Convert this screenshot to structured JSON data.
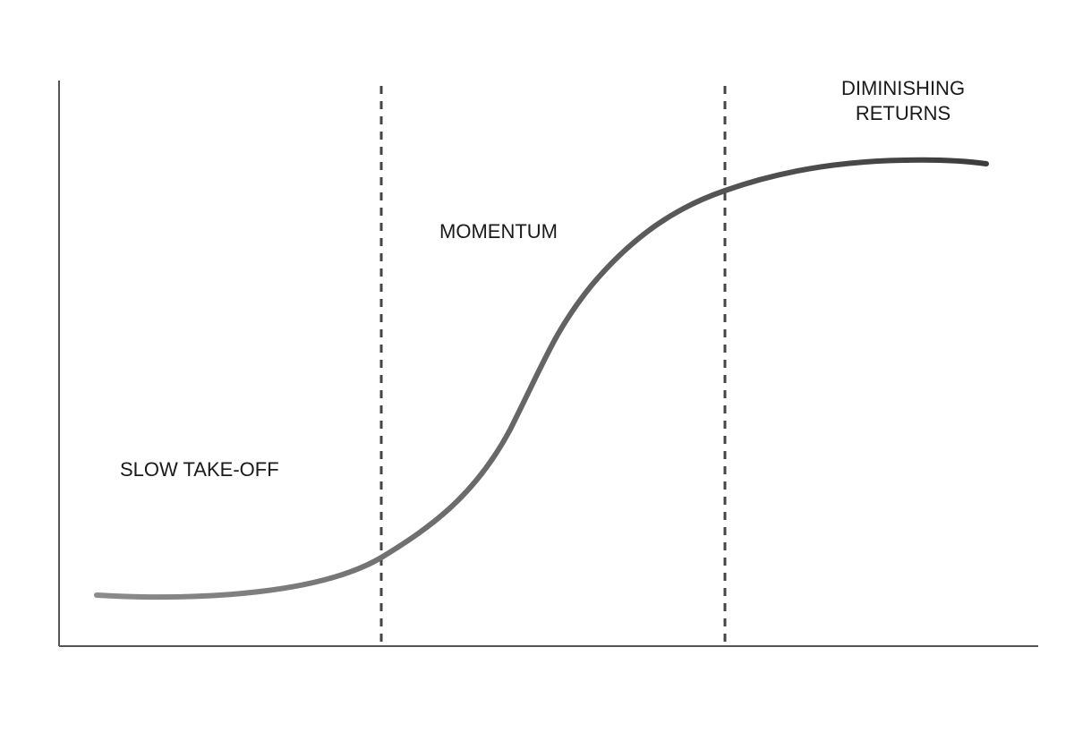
{
  "phases": {
    "slow_takeoff": "SLOW TAKE-OFF",
    "momentum": "MOMENTUM",
    "diminishing_line1": "DIMINISHING",
    "diminishing_line2": "RETURNS"
  },
  "colors": {
    "curve_start": "#8c8c8c",
    "curve_end": "#3c3c3c",
    "axis": "#555555",
    "divider": "#444444",
    "text": "#1a1a1a"
  }
}
